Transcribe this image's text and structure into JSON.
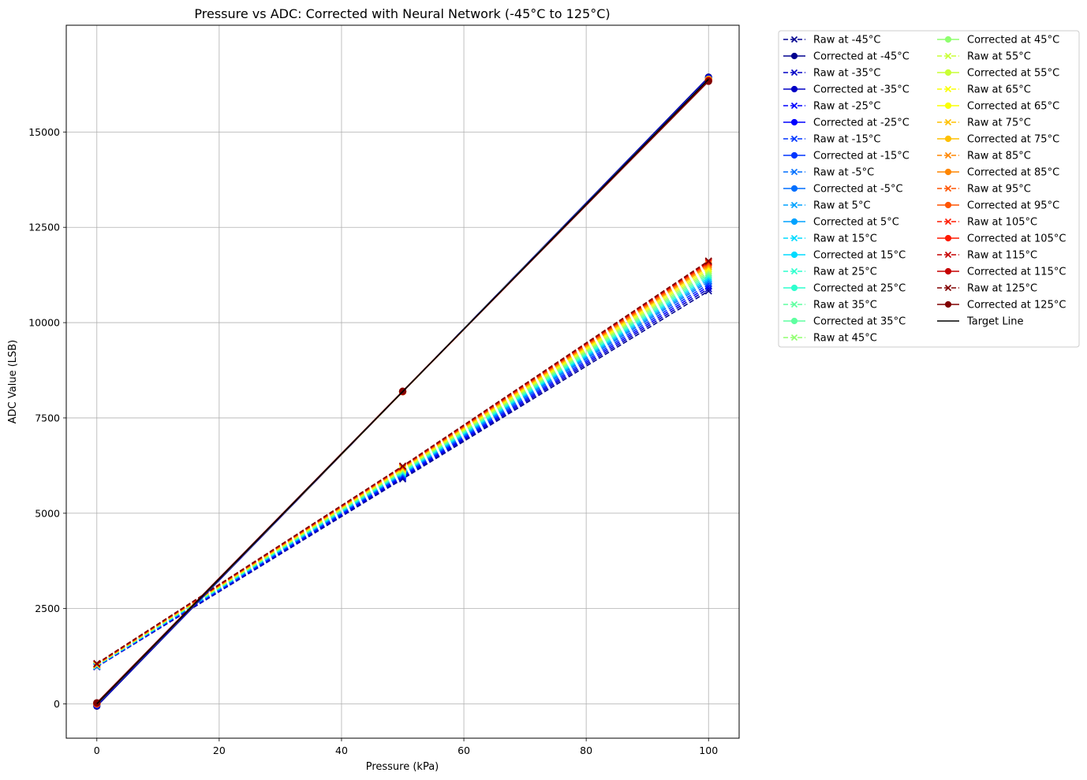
{
  "chart_data": {
    "type": "line",
    "title": "Pressure vs ADC: Corrected with Neural Network (-45°C to 125°C)",
    "xlabel": "Pressure (kPa)",
    "ylabel": "ADC Value (LSB)",
    "xlim": [
      -5,
      105
    ],
    "ylim": [
      -900,
      17800
    ],
    "xticks": [
      0,
      20,
      40,
      60,
      80,
      100
    ],
    "yticks": [
      0,
      2500,
      5000,
      7500,
      10000,
      12500,
      15000
    ],
    "grid": true,
    "legend_position": "outside-right",
    "x": [
      0,
      50,
      100
    ],
    "series": [
      {
        "name": "Raw at -45°C",
        "kind": "raw",
        "color": "#00008f",
        "values": [
          970,
          5900,
          10830
        ]
      },
      {
        "name": "Corrected at -45°C",
        "kind": "corrected",
        "color": "#00008f",
        "values": [
          -60,
          8190,
          16440
        ]
      },
      {
        "name": "Raw at -35°C",
        "kind": "raw",
        "color": "#0000c6",
        "values": [
          975,
          5930,
          10890
        ]
      },
      {
        "name": "Corrected at -35°C",
        "kind": "corrected",
        "color": "#0000c6",
        "values": [
          -40,
          8190,
          16420
        ]
      },
      {
        "name": "Raw at -25°C",
        "kind": "raw",
        "color": "#0000fe",
        "values": [
          980,
          5960,
          10950
        ]
      },
      {
        "name": "Corrected at -25°C",
        "kind": "corrected",
        "color": "#0000fe",
        "values": [
          -20,
          8190,
          16400
        ]
      },
      {
        "name": "Raw at -15°C",
        "kind": "raw",
        "color": "#0035ff",
        "values": [
          985,
          5990,
          11010
        ]
      },
      {
        "name": "Corrected at -15°C",
        "kind": "corrected",
        "color": "#0035ff",
        "values": [
          -10,
          8190,
          16390
        ]
      },
      {
        "name": "Raw at -5°C",
        "kind": "raw",
        "color": "#006fff",
        "values": [
          990,
          6020,
          11070
        ]
      },
      {
        "name": "Corrected at -5°C",
        "kind": "corrected",
        "color": "#006fff",
        "values": [
          0,
          8190,
          16380
        ]
      },
      {
        "name": "Raw at 5°C",
        "kind": "raw",
        "color": "#00a2ff",
        "values": [
          995,
          6040,
          11120
        ]
      },
      {
        "name": "Corrected at 5°C",
        "kind": "corrected",
        "color": "#00a2ff",
        "values": [
          0,
          8190,
          16380
        ]
      },
      {
        "name": "Raw at 15°C",
        "kind": "raw",
        "color": "#00dbff",
        "values": [
          1000,
          6060,
          11170
        ]
      },
      {
        "name": "Corrected at 15°C",
        "kind": "corrected",
        "color": "#00dbff",
        "values": [
          0,
          8190,
          16380
        ]
      },
      {
        "name": "Raw at 25°C",
        "kind": "raw",
        "color": "#2dffce",
        "values": [
          1005,
          6080,
          11220
        ]
      },
      {
        "name": "Corrected at 25°C",
        "kind": "corrected",
        "color": "#2dffce",
        "values": [
          0,
          8190,
          16380
        ]
      },
      {
        "name": "Raw at 35°C",
        "kind": "raw",
        "color": "#5effa0",
        "values": [
          1010,
          6100,
          11270
        ]
      },
      {
        "name": "Corrected at 35°C",
        "kind": "corrected",
        "color": "#5effa0",
        "values": [
          0,
          8190,
          16380
        ]
      },
      {
        "name": "Raw at 45°C",
        "kind": "raw",
        "color": "#8fff6f",
        "values": [
          1015,
          6120,
          11320
        ]
      },
      {
        "name": "Corrected at 45°C",
        "kind": "corrected",
        "color": "#8fff6f",
        "values": [
          0,
          8190,
          16380
        ]
      },
      {
        "name": "Raw at 55°C",
        "kind": "raw",
        "color": "#c9ff35",
        "values": [
          1020,
          6140,
          11370
        ]
      },
      {
        "name": "Corrected at 55°C",
        "kind": "corrected",
        "color": "#c9ff35",
        "values": [
          0,
          8190,
          16380
        ]
      },
      {
        "name": "Raw at 65°C",
        "kind": "raw",
        "color": "#faff05",
        "values": [
          1025,
          6160,
          11420
        ]
      },
      {
        "name": "Corrected at 65°C",
        "kind": "corrected",
        "color": "#faff05",
        "values": [
          0,
          8190,
          16380
        ]
      },
      {
        "name": "Raw at 75°C",
        "kind": "raw",
        "color": "#ffc000",
        "values": [
          1030,
          6180,
          11470
        ]
      },
      {
        "name": "Corrected at 75°C",
        "kind": "corrected",
        "color": "#ffc000",
        "values": [
          0,
          8190,
          16380
        ]
      },
      {
        "name": "Raw at 85°C",
        "kind": "raw",
        "color": "#ff8600",
        "values": [
          1035,
          6200,
          11510
        ]
      },
      {
        "name": "Corrected at 85°C",
        "kind": "corrected",
        "color": "#ff8600",
        "values": [
          0,
          8190,
          16370
        ]
      },
      {
        "name": "Raw at 95°C",
        "kind": "raw",
        "color": "#ff5400",
        "values": [
          1040,
          6210,
          11550
        ]
      },
      {
        "name": "Corrected at 95°C",
        "kind": "corrected",
        "color": "#ff5400",
        "values": [
          0,
          8190,
          16360
        ]
      },
      {
        "name": "Raw at 105°C",
        "kind": "raw",
        "color": "#ff1a00",
        "values": [
          1045,
          6220,
          11580
        ]
      },
      {
        "name": "Corrected at 105°C",
        "kind": "corrected",
        "color": "#ff1a00",
        "values": [
          10,
          8190,
          16350
        ]
      },
      {
        "name": "Raw at 115°C",
        "kind": "raw",
        "color": "#c60000",
        "values": [
          1050,
          6230,
          11600
        ]
      },
      {
        "name": "Corrected at 115°C",
        "kind": "corrected",
        "color": "#c60000",
        "values": [
          20,
          8200,
          16340
        ]
      },
      {
        "name": "Raw at 125°C",
        "kind": "raw",
        "color": "#800000",
        "values": [
          1060,
          6240,
          11620
        ]
      },
      {
        "name": "Corrected at 125°C",
        "kind": "corrected",
        "color": "#800000",
        "values": [
          30,
          8200,
          16330
        ]
      },
      {
        "name": "Target Line",
        "kind": "target",
        "color": "#000000",
        "values": [
          0,
          8191,
          16383
        ]
      }
    ]
  }
}
